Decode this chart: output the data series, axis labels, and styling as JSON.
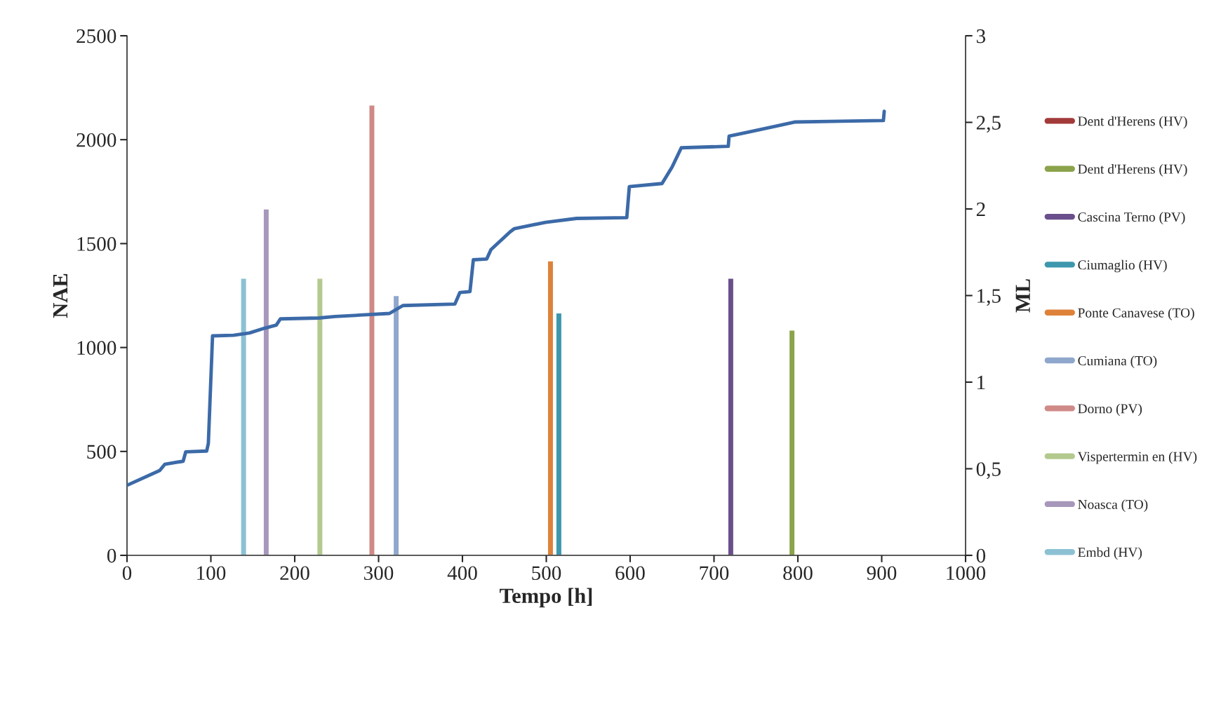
{
  "chart_data": {
    "type": "line",
    "xlabel": "Tempo [h]",
    "ylabel": "NAE",
    "y2label": "ML",
    "xlim": [
      0,
      1000
    ],
    "xticks": [
      0,
      100,
      200,
      300,
      400,
      500,
      600,
      700,
      800,
      900,
      1000
    ],
    "ylim": [
      0,
      2500
    ],
    "yticks": [
      0,
      500,
      1000,
      1500,
      2000,
      2500
    ],
    "y2lim": [
      0,
      3
    ],
    "y2ticks": [
      0,
      {
        "value": 0.5,
        "label": "0,5"
      },
      1,
      {
        "value": 1.5,
        "label": "1,5"
      },
      2,
      {
        "value": 2.5,
        "label": "2,5"
      },
      3
    ],
    "grid": false,
    "legend": "right",
    "series": [
      {
        "color": "#3c6aa8",
        "x": [
          0,
          39,
          45,
          67,
          70,
          95,
          97,
          102,
          127,
          146,
          164,
          178,
          183,
          229,
          248,
          313,
          329,
          391,
          397,
          409,
          413,
          429,
          434,
          443,
          457,
          462,
          499,
          536,
          596,
          599,
          638,
          650,
          661,
          717,
          718,
          740,
          775,
          796,
          851,
          902,
          903
        ],
        "values": [
          337,
          408,
          438,
          453,
          498,
          502,
          539,
          1056,
          1059,
          1070,
          1093,
          1108,
          1138,
          1142,
          1149,
          1164,
          1202,
          1209,
          1265,
          1269,
          1422,
          1426,
          1471,
          1505,
          1557,
          1572,
          1602,
          1621,
          1625,
          1774,
          1789,
          1868,
          1961,
          1968,
          2017,
          2036,
          2066,
          2085,
          2089,
          2092,
          2137
        ]
      },
      {
        "type": "bar",
        "axis": "y2",
        "name": "Dent d'Herens (HV)",
        "color": "#a33a3a",
        "values": [
          null
        ]
      },
      {
        "type": "bar",
        "axis": "y2",
        "name": "Dent d'Herens (HV)",
        "color": "#8ba34a",
        "x": [
          793
        ],
        "values": [
          1.3
        ]
      },
      {
        "type": "bar",
        "axis": "y2",
        "name": "Cascina Terno (PV)",
        "color": "#6a4f8c",
        "x": [
          720
        ],
        "values": [
          1.6
        ]
      },
      {
        "type": "bar",
        "axis": "y2",
        "name": "Ciumaglio (HV)",
        "color": "#3d97ad",
        "x": [
          515
        ],
        "values": [
          1.4
        ]
      },
      {
        "type": "bar",
        "axis": "y2",
        "name": "Ponte Canavese (TO)",
        "color": "#de823a",
        "x": [
          505
        ],
        "values": [
          1.7
        ]
      },
      {
        "type": "bar",
        "axis": "y2",
        "name": "Cumiana (TO)",
        "color": "#8fa7cc",
        "x": [
          321
        ],
        "values": [
          1.5
        ]
      },
      {
        "type": "bar",
        "axis": "y2",
        "name": "Dorno (PV)",
        "color": "#cf8a88",
        "x": [
          292
        ],
        "values": [
          2.6
        ]
      },
      {
        "type": "bar",
        "axis": "y2",
        "name": "Vispertermin en (HV)",
        "color": "#b4c98e",
        "x": [
          230
        ],
        "values": [
          1.6
        ]
      },
      {
        "type": "bar",
        "axis": "y2",
        "name": "Noasca (TO)",
        "color": "#a797bb",
        "x": [
          166
        ],
        "values": [
          2.0
        ]
      },
      {
        "type": "bar",
        "axis": "y2",
        "name": "Embd (HV)",
        "color": "#8cc1d3",
        "x": [
          139
        ],
        "values": [
          1.6
        ]
      }
    ]
  }
}
